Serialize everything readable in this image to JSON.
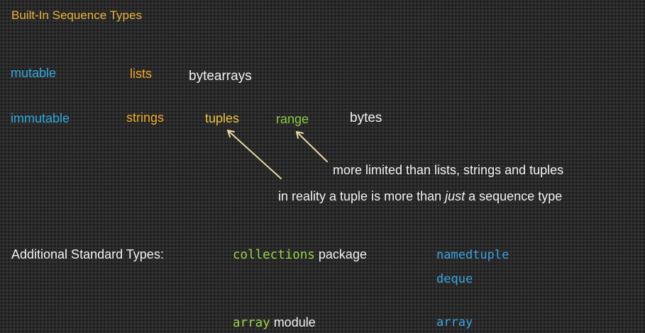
{
  "title": "Built-In Sequence Types",
  "rows": {
    "mutable": {
      "label": "mutable",
      "items": [
        "lists",
        "bytearrays"
      ]
    },
    "immutable": {
      "label": "immutable",
      "items": [
        "strings",
        "tuples",
        "range",
        "bytes"
      ]
    }
  },
  "notes": {
    "range_note": "more limited than lists, strings and tuples",
    "tuple_note_prefix": "in reality a tuple is more than ",
    "tuple_note_emphasis": "just",
    "tuple_note_suffix": " a sequence type"
  },
  "additional": {
    "label": "Additional Standard Types:",
    "collections_code": "collections",
    "collections_suffix": " package",
    "collections_types": [
      "namedtuple",
      "deque"
    ],
    "array_code": "array",
    "array_suffix": " module",
    "array_types": [
      "array"
    ]
  },
  "colors": {
    "title": "#e8b23a",
    "label": "#2fa8d8",
    "orange": "#f0a824",
    "yellow": "#ebc53c",
    "green": "#8cc63e",
    "white": "#f2f2f2",
    "code_green": "#9bd24a",
    "code_blue": "#3aa4e2",
    "arrow": "#e6d9a2"
  }
}
